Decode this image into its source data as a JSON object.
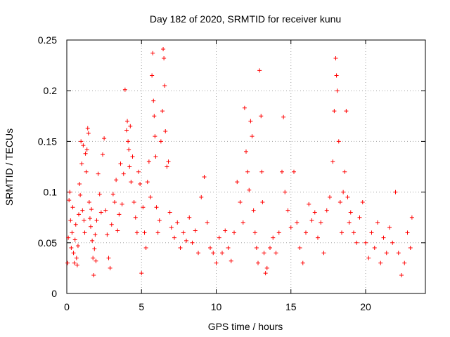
{
  "chart_data": {
    "type": "scatter",
    "title": "Day 182 of 2020, SRMTID for receiver kunu",
    "xlabel": "GPS time / hours",
    "ylabel": "SRMTID / TECUs",
    "xlim": [
      0,
      24
    ],
    "ylim": [
      0,
      0.25
    ],
    "x_ticks": [
      0,
      5,
      10,
      15,
      20
    ],
    "x_tick_labels": [
      "0",
      "5",
      "10",
      "15",
      "20"
    ],
    "y_ticks": [
      0,
      0.05,
      0.1,
      0.15,
      0.2,
      0.25
    ],
    "y_tick_labels": [
      "0",
      "0.05",
      "0.1",
      "0.15",
      "0.2",
      "0.25"
    ],
    "grid": true,
    "marker": "+",
    "marker_color": "#ff0000",
    "series": [
      {
        "name": "SRMTID",
        "points": [
          [
            0.05,
            0.03
          ],
          [
            0.1,
            0.055
          ],
          [
            0.15,
            0.092
          ],
          [
            0.2,
            0.1
          ],
          [
            0.25,
            0.072
          ],
          [
            0.3,
            0.045
          ],
          [
            0.35,
            0.06
          ],
          [
            0.4,
            0.085
          ],
          [
            0.45,
            0.04
          ],
          [
            0.5,
            0.03
          ],
          [
            0.55,
            0.053
          ],
          [
            0.6,
            0.068
          ],
          [
            0.65,
            0.035
          ],
          [
            0.7,
            0.028
          ],
          [
            0.75,
            0.047
          ],
          [
            0.8,
            0.078
          ],
          [
            0.85,
            0.108
          ],
          [
            0.9,
            0.097
          ],
          [
            0.95,
            0.15
          ],
          [
            1.0,
            0.128
          ],
          [
            1.05,
            0.082
          ],
          [
            1.1,
            0.146
          ],
          [
            1.15,
            0.072
          ],
          [
            1.2,
            0.06
          ],
          [
            1.25,
            0.138
          ],
          [
            1.3,
            0.12
          ],
          [
            1.35,
            0.142
          ],
          [
            1.4,
            0.163
          ],
          [
            1.45,
            0.158
          ],
          [
            1.5,
            0.09
          ],
          [
            1.55,
            0.074
          ],
          [
            1.6,
            0.066
          ],
          [
            1.65,
            0.083
          ],
          [
            1.7,
            0.052
          ],
          [
            1.75,
            0.035
          ],
          [
            1.8,
            0.018
          ],
          [
            1.85,
            0.044
          ],
          [
            1.9,
            0.058
          ],
          [
            1.95,
            0.032
          ],
          [
            2.0,
            0.072
          ],
          [
            2.1,
            0.118
          ],
          [
            2.2,
            0.098
          ],
          [
            2.3,
            0.08
          ],
          [
            2.4,
            0.137
          ],
          [
            2.5,
            0.153
          ],
          [
            2.6,
            0.082
          ],
          [
            2.7,
            0.058
          ],
          [
            2.8,
            0.035
          ],
          [
            2.9,
            0.025
          ],
          [
            3.0,
            0.068
          ],
          [
            3.1,
            0.098
          ],
          [
            3.2,
            0.09
          ],
          [
            3.3,
            0.112
          ],
          [
            3.4,
            0.062
          ],
          [
            3.5,
            0.078
          ],
          [
            3.6,
            0.128
          ],
          [
            3.7,
            0.088
          ],
          [
            3.8,
            0.118
          ],
          [
            3.9,
            0.201
          ],
          [
            4.0,
            0.161
          ],
          [
            4.05,
            0.17
          ],
          [
            4.1,
            0.15
          ],
          [
            4.15,
            0.142
          ],
          [
            4.2,
            0.125
          ],
          [
            4.25,
            0.165
          ],
          [
            4.3,
            0.11
          ],
          [
            4.4,
            0.135
          ],
          [
            4.5,
            0.09
          ],
          [
            4.6,
            0.075
          ],
          [
            4.7,
            0.06
          ],
          [
            4.8,
            0.12
          ],
          [
            4.9,
            0.108
          ],
          [
            5.0,
            0.02
          ],
          [
            5.1,
            0.085
          ],
          [
            5.2,
            0.06
          ],
          [
            5.3,
            0.045
          ],
          [
            5.4,
            0.11
          ],
          [
            5.5,
            0.13
          ],
          [
            5.6,
            0.095
          ],
          [
            5.7,
            0.215
          ],
          [
            5.75,
            0.237
          ],
          [
            5.8,
            0.19
          ],
          [
            5.85,
            0.175
          ],
          [
            5.9,
            0.155
          ],
          [
            5.95,
            0.135
          ],
          [
            6.0,
            0.085
          ],
          [
            6.1,
            0.06
          ],
          [
            6.2,
            0.072
          ],
          [
            6.3,
            0.15
          ],
          [
            6.4,
            0.18
          ],
          [
            6.45,
            0.241
          ],
          [
            6.5,
            0.232
          ],
          [
            6.55,
            0.205
          ],
          [
            6.6,
            0.16
          ],
          [
            6.7,
            0.125
          ],
          [
            6.8,
            0.13
          ],
          [
            6.9,
            0.08
          ],
          [
            7.0,
            0.065
          ],
          [
            7.2,
            0.055
          ],
          [
            7.4,
            0.07
          ],
          [
            7.6,
            0.045
          ],
          [
            7.8,
            0.06
          ],
          [
            8.0,
            0.052
          ],
          [
            8.2,
            0.075
          ],
          [
            8.4,
            0.05
          ],
          [
            8.6,
            0.062
          ],
          [
            8.8,
            0.04
          ],
          [
            9.0,
            0.095
          ],
          [
            9.2,
            0.115
          ],
          [
            9.4,
            0.07
          ],
          [
            9.6,
            0.045
          ],
          [
            9.8,
            0.04
          ],
          [
            10.0,
            0.03
          ],
          [
            10.2,
            0.055
          ],
          [
            10.4,
            0.04
          ],
          [
            10.6,
            0.062
          ],
          [
            10.8,
            0.045
          ],
          [
            11.0,
            0.032
          ],
          [
            11.2,
            0.06
          ],
          [
            11.4,
            0.11
          ],
          [
            11.6,
            0.09
          ],
          [
            11.8,
            0.07
          ],
          [
            11.9,
            0.183
          ],
          [
            12.0,
            0.14
          ],
          [
            12.1,
            0.12
          ],
          [
            12.2,
            0.102
          ],
          [
            12.3,
            0.17
          ],
          [
            12.4,
            0.155
          ],
          [
            12.5,
            0.082
          ],
          [
            12.6,
            0.06
          ],
          [
            12.7,
            0.045
          ],
          [
            12.8,
            0.03
          ],
          [
            12.9,
            0.22
          ],
          [
            13.0,
            0.175
          ],
          [
            13.05,
            0.12
          ],
          [
            13.1,
            0.09
          ],
          [
            13.2,
            0.04
          ],
          [
            13.3,
            0.02
          ],
          [
            13.4,
            0.025
          ],
          [
            13.6,
            0.045
          ],
          [
            13.8,
            0.055
          ],
          [
            14.0,
            0.04
          ],
          [
            14.2,
            0.06
          ],
          [
            14.4,
            0.12
          ],
          [
            14.5,
            0.174
          ],
          [
            14.6,
            0.1
          ],
          [
            14.8,
            0.082
          ],
          [
            15.0,
            0.065
          ],
          [
            15.2,
            0.12
          ],
          [
            15.4,
            0.07
          ],
          [
            15.6,
            0.045
          ],
          [
            15.8,
            0.03
          ],
          [
            16.0,
            0.06
          ],
          [
            16.2,
            0.088
          ],
          [
            16.4,
            0.072
          ],
          [
            16.6,
            0.08
          ],
          [
            16.8,
            0.055
          ],
          [
            17.0,
            0.07
          ],
          [
            17.2,
            0.04
          ],
          [
            17.4,
            0.082
          ],
          [
            17.6,
            0.095
          ],
          [
            17.8,
            0.13
          ],
          [
            17.9,
            0.18
          ],
          [
            18.0,
            0.232
          ],
          [
            18.05,
            0.215
          ],
          [
            18.1,
            0.2
          ],
          [
            18.2,
            0.15
          ],
          [
            18.3,
            0.09
          ],
          [
            18.4,
            0.06
          ],
          [
            18.5,
            0.1
          ],
          [
            18.6,
            0.12
          ],
          [
            18.7,
            0.18
          ],
          [
            18.8,
            0.095
          ],
          [
            18.9,
            0.07
          ],
          [
            19.0,
            0.08
          ],
          [
            19.2,
            0.06
          ],
          [
            19.4,
            0.05
          ],
          [
            19.6,
            0.075
          ],
          [
            19.8,
            0.09
          ],
          [
            20.0,
            0.05
          ],
          [
            20.2,
            0.035
          ],
          [
            20.4,
            0.06
          ],
          [
            20.6,
            0.045
          ],
          [
            20.8,
            0.07
          ],
          [
            21.0,
            0.03
          ],
          [
            21.2,
            0.055
          ],
          [
            21.4,
            0.04
          ],
          [
            21.6,
            0.065
          ],
          [
            21.8,
            0.05
          ],
          [
            22.0,
            0.1
          ],
          [
            22.2,
            0.04
          ],
          [
            22.4,
            0.018
          ],
          [
            22.6,
            0.03
          ],
          [
            22.8,
            0.06
          ],
          [
            23.0,
            0.045
          ],
          [
            23.1,
            0.075
          ]
        ]
      }
    ]
  }
}
